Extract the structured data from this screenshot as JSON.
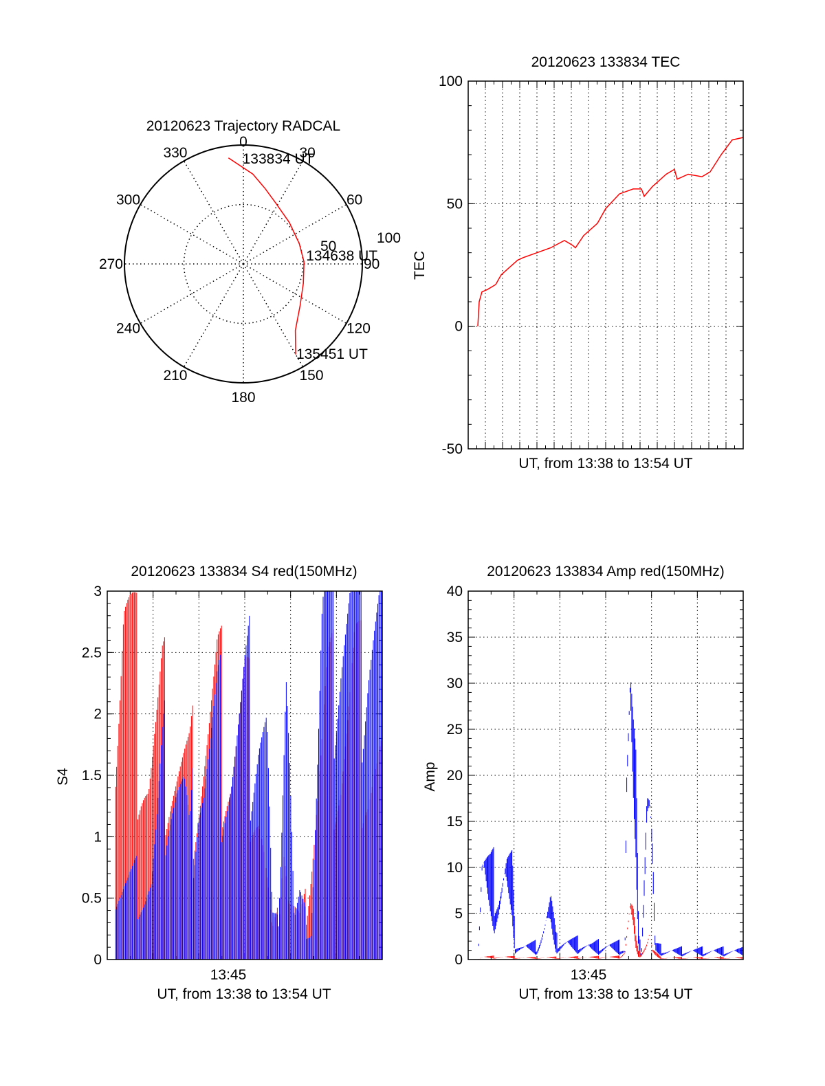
{
  "chart_data": [
    {
      "id": "trajectory",
      "type": "polar",
      "title": "20120623 Trajectory RADCAL",
      "angle_labels": [
        "0",
        "30",
        "60",
        "90",
        "120",
        "150",
        "180",
        "210",
        "240",
        "270",
        "300",
        "330"
      ],
      "radial_labels": [
        "50",
        "100"
      ],
      "rmax": 100,
      "grid": true,
      "series": [
        {
          "color": "#ff0000",
          "points": [
            {
              "az": 352,
              "zen": 90
            },
            {
              "az": 6,
              "zen": 76
            },
            {
              "az": 16,
              "zen": 66
            },
            {
              "az": 28,
              "zen": 58
            },
            {
              "az": 48,
              "zen": 52
            },
            {
              "az": 70,
              "zen": 50
            },
            {
              "az": 88,
              "zen": 51
            },
            {
              "az": 108,
              "zen": 53
            },
            {
              "az": 126,
              "zen": 59
            },
            {
              "az": 142,
              "zen": 71
            },
            {
              "az": 150,
              "zen": 88
            }
          ]
        }
      ],
      "annotations": [
        {
          "text": "133834 UT",
          "az": 4,
          "zen": 88
        },
        {
          "text": "134638 UT",
          "az": 84,
          "zen": 60
        },
        {
          "text": "135451 UT",
          "az": 146,
          "zen": 92
        }
      ]
    },
    {
      "id": "tec",
      "type": "line",
      "title": "20120623 133834 TEC",
      "ylabel": "TEC",
      "xlabel": "UT, from 13:38 to 13:54 UT",
      "xlim": [
        0,
        1
      ],
      "ylim": [
        -50,
        100
      ],
      "yticks": [
        "-50",
        "0",
        "50",
        "100"
      ],
      "grid": true,
      "series": [
        {
          "color": "#ff0000",
          "x": [
            0.035,
            0.04,
            0.05,
            0.07,
            0.1,
            0.12,
            0.15,
            0.18,
            0.2,
            0.25,
            0.3,
            0.35,
            0.38,
            0.39,
            0.42,
            0.47,
            0.5,
            0.55,
            0.6,
            0.63,
            0.64,
            0.67,
            0.72,
            0.75,
            0.76,
            0.8,
            0.85,
            0.88,
            0.92,
            0.96,
            1.0
          ],
          "y": [
            0,
            10,
            14,
            15,
            17,
            21,
            24,
            27,
            28,
            30,
            32,
            35,
            33,
            32,
            37,
            42,
            48,
            54,
            56,
            56,
            53,
            57,
            62,
            64,
            60,
            62,
            61,
            63,
            70,
            76,
            77
          ]
        }
      ]
    },
    {
      "id": "s4",
      "type": "line",
      "title": "20120623 133834 S4 red(150MHz)",
      "ylabel": "S4",
      "xlabel": "UT, from 13:38 to 13:54 UT",
      "xtick_label": "13:45",
      "xlim": [
        0,
        1
      ],
      "ylim": [
        0,
        3
      ],
      "yticks": [
        "0",
        "0.5",
        "1",
        "1.5",
        "2",
        "2.5",
        "3"
      ],
      "grid": true,
      "series": [
        {
          "color": "#ff0000",
          "x": [
            0.03,
            0.06,
            0.1,
            0.15,
            0.2,
            0.25,
            0.3,
            0.35,
            0.4,
            0.45,
            0.5,
            0.55,
            0.6,
            0.62,
            0.64,
            0.66,
            0.7,
            0.72,
            0.76,
            0.8,
            0.85,
            0.9,
            0.95,
            1.0
          ],
          "y": [
            1.9,
            2.8,
            2.2,
            1.5,
            1.9,
            1.6,
            1.4,
            1.7,
            2.0,
            1.6,
            1.9,
            1.3,
            0.2,
            0.3,
            1.2,
            0.5,
            0.3,
            0.4,
            1.3,
            2.0,
            1.7,
            2.2,
            1.6,
            1.5
          ]
        },
        {
          "color": "#0000ff",
          "x": [
            0.03,
            0.06,
            0.1,
            0.13,
            0.16,
            0.2,
            0.22,
            0.25,
            0.28,
            0.3,
            0.33,
            0.35,
            0.4,
            0.45,
            0.5,
            0.55,
            0.58,
            0.6,
            0.62,
            0.65,
            0.68,
            0.7,
            0.72,
            0.74,
            0.78,
            0.8,
            0.85,
            0.9,
            0.95,
            1.0
          ],
          "y": [
            0.55,
            0.58,
            0.6,
            0.57,
            0.62,
            1.4,
            1.6,
            1.5,
            1.3,
            0.85,
            1.6,
            1.5,
            1.8,
            1.6,
            1.9,
            2.0,
            1.8,
            0.3,
            0.25,
            2.8,
            0.3,
            0.45,
            0.3,
            0.25,
            2.6,
            2.8,
            2.9,
            2.7,
            2.9,
            2.6
          ]
        }
      ]
    },
    {
      "id": "amp",
      "type": "line",
      "title": "20120623 133834 Amp red(150MHz)",
      "ylabel": "Amp",
      "xlabel": "UT, from 13:38 to 13:54 UT",
      "xtick_label": "13:45",
      "xlim": [
        0,
        1
      ],
      "ylim": [
        0,
        40
      ],
      "yticks": [
        "0",
        "5",
        "10",
        "15",
        "20",
        "25",
        "30",
        "35",
        "40"
      ],
      "grid": true,
      "series": [
        {
          "color": "#0000ff",
          "x": [
            0.035,
            0.05,
            0.08,
            0.11,
            0.14,
            0.16,
            0.17,
            0.2,
            0.25,
            0.28,
            0.3,
            0.32,
            0.35,
            0.4,
            0.45,
            0.5,
            0.55,
            0.57,
            0.575,
            0.58,
            0.59,
            0.6,
            0.61,
            0.62,
            0.63,
            0.64,
            0.65,
            0.66,
            0.67,
            0.68,
            0.7,
            0.72,
            0.75,
            0.8,
            0.85,
            0.9,
            0.95,
            1.0
          ],
          "y": [
            0,
            11,
            9,
            8,
            10,
            9,
            2,
            1.5,
            1.5,
            4,
            6,
            2,
            2,
            1.8,
            1.5,
            1.6,
            1.5,
            1.2,
            22,
            25,
            30,
            23,
            18,
            2,
            1,
            12,
            21,
            18,
            12,
            1.5,
            1.2,
            1.0,
            1.0,
            1.0,
            1.0,
            1.0,
            1.0,
            1.0
          ]
        },
        {
          "color": "#ff0000",
          "x": [
            0.035,
            0.05,
            0.1,
            0.15,
            0.2,
            0.55,
            0.57,
            0.58,
            0.59,
            0.6,
            0.61,
            0.62,
            0.65,
            0.66,
            0.67,
            0.7,
            1.0
          ],
          "y": [
            0,
            0.3,
            0.3,
            0.3,
            0.2,
            0.3,
            1,
            4,
            6,
            5,
            2,
            0.5,
            2,
            3,
            1,
            0.2,
            0.2
          ]
        }
      ]
    }
  ]
}
